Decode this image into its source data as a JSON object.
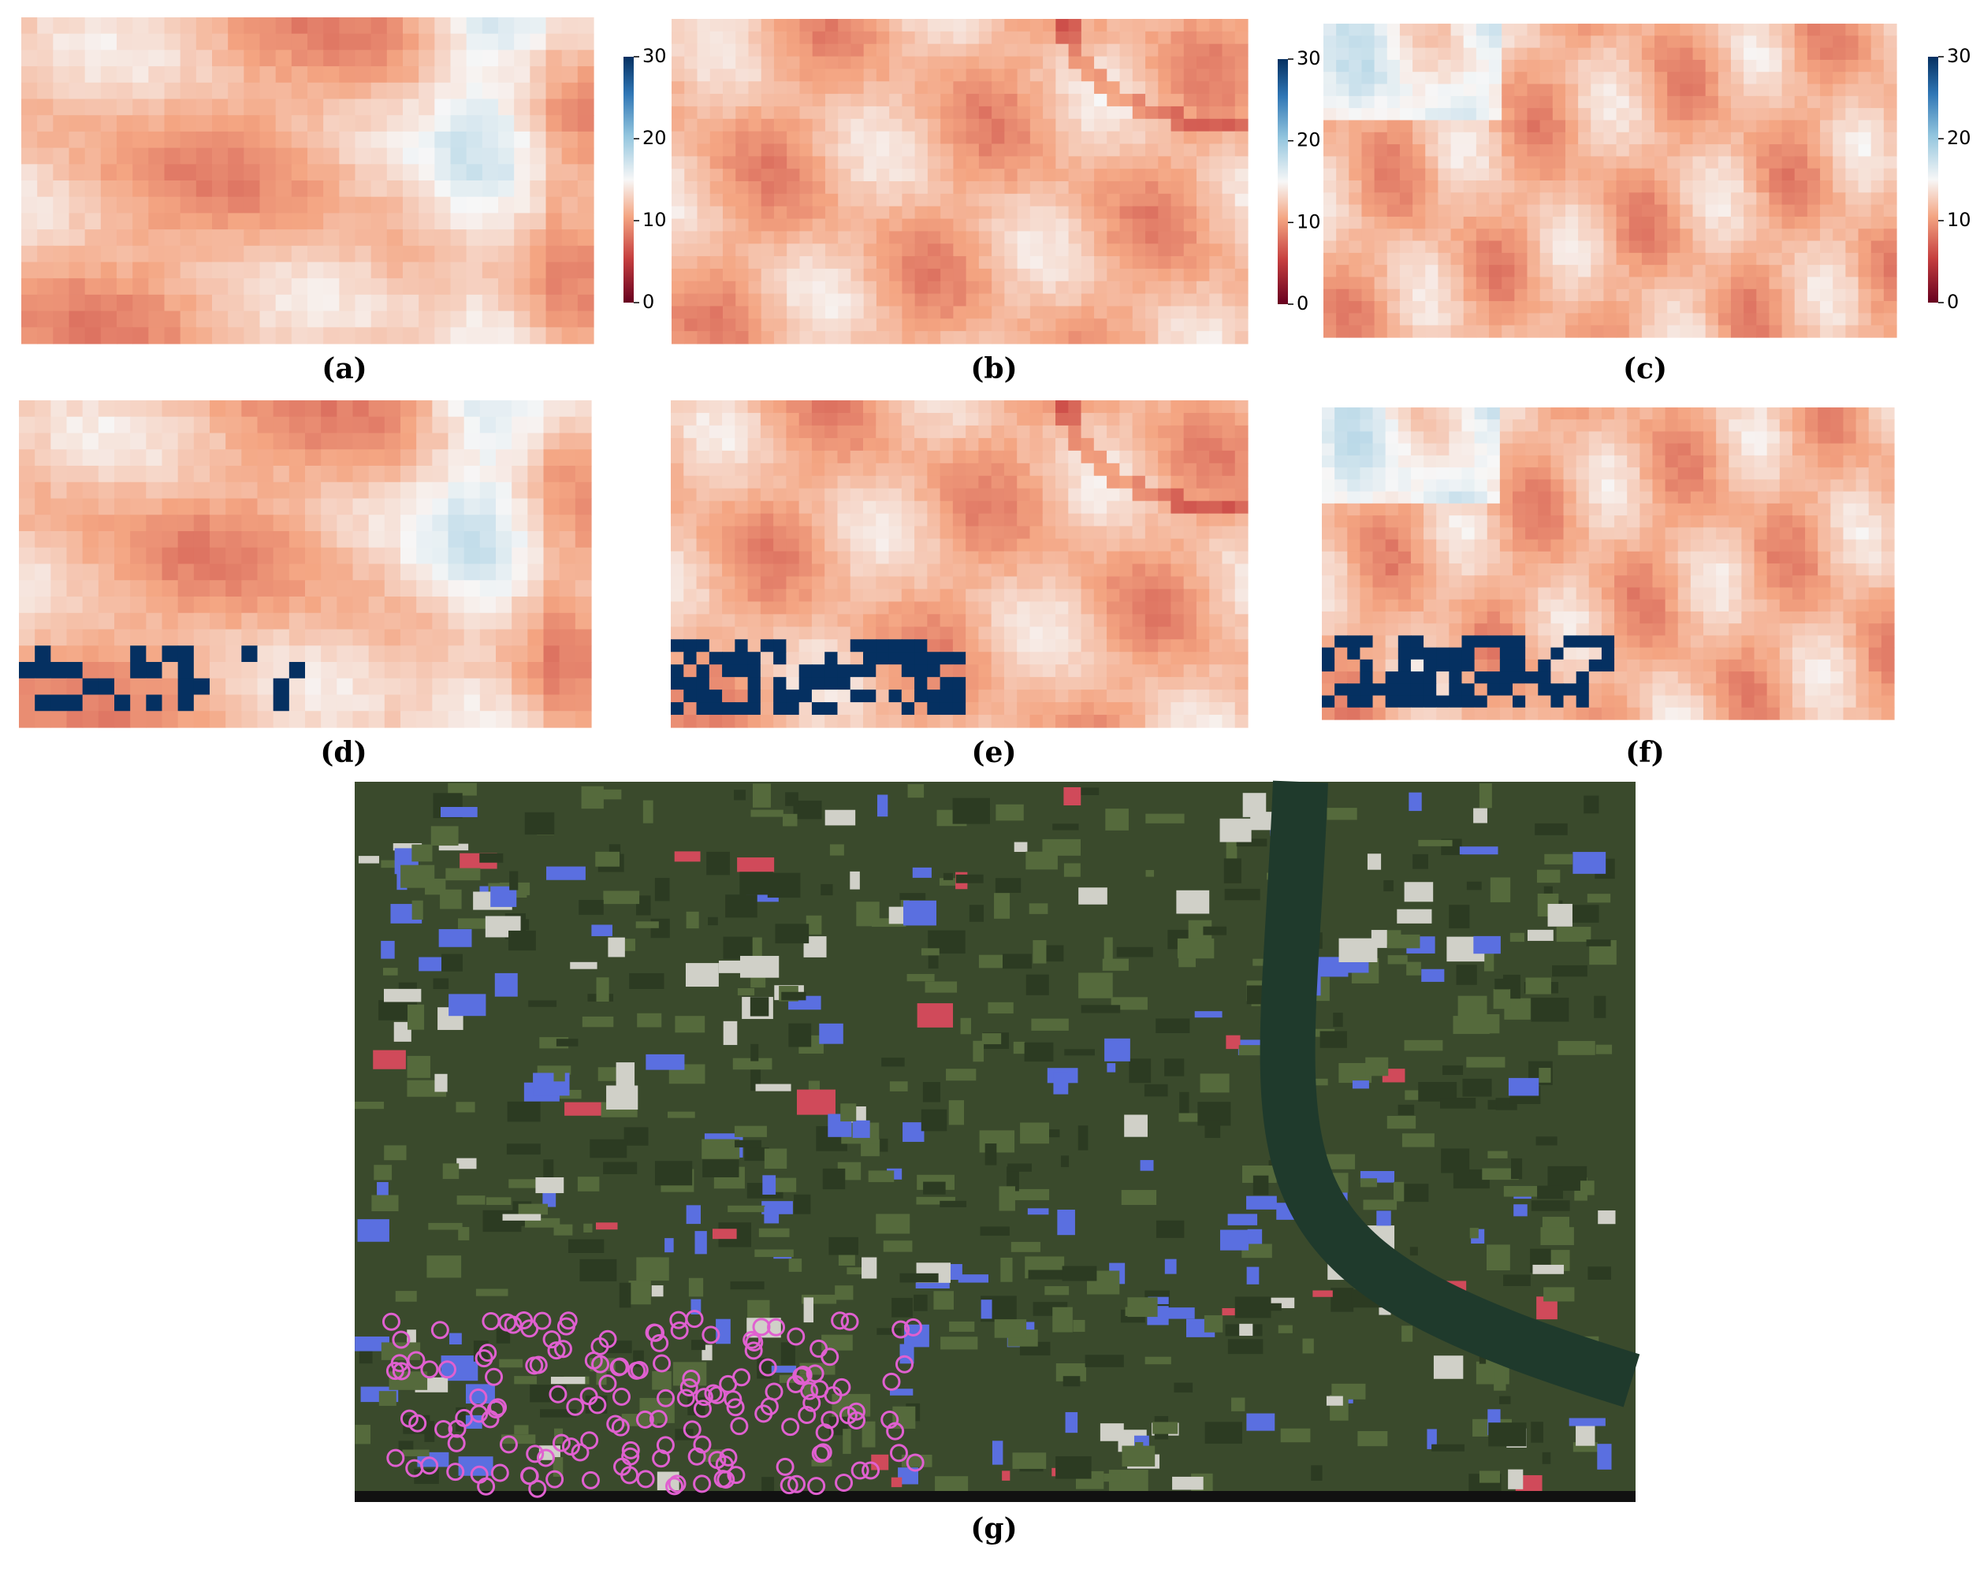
{
  "figure": {
    "panels": [
      {
        "label": "(a)"
      },
      {
        "label": "(b)"
      },
      {
        "label": "(c)"
      },
      {
        "label": "(d)"
      },
      {
        "label": "(e)"
      },
      {
        "label": "(f)"
      },
      {
        "label": "(g)"
      }
    ],
    "colorbars": [
      {
        "ticks": [
          0,
          10,
          20,
          30
        ]
      },
      {
        "ticks": [
          0,
          10,
          20,
          30
        ]
      },
      {
        "ticks": [
          0,
          10,
          20,
          30
        ]
      }
    ]
  }
}
